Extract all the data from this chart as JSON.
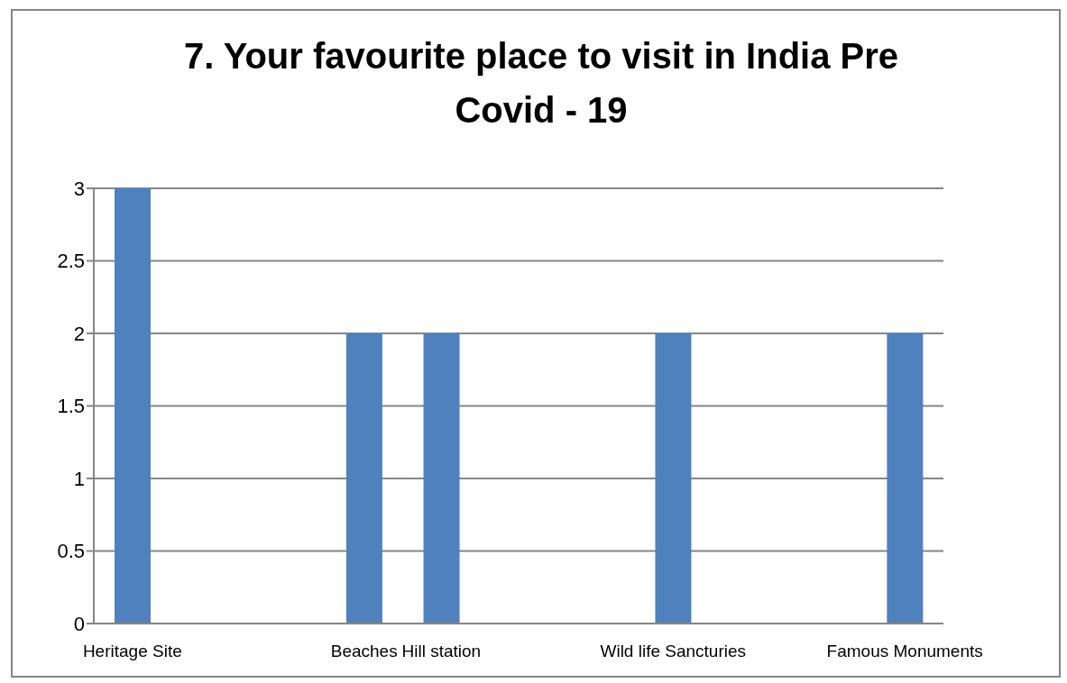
{
  "chart_data": {
    "type": "bar",
    "title": "7. Your favourite place to visit in India Pre Covid - 19",
    "categories": [
      "Heritage Site",
      null,
      null,
      "Beaches",
      "Hill station",
      null,
      null,
      "Wild life Sancturies",
      null,
      null,
      "Famous Monuments"
    ],
    "values": [
      3,
      null,
      0,
      2,
      2,
      null,
      0,
      2,
      null,
      0,
      2
    ],
    "color": "#4f81bd",
    "ylim": [
      0,
      3
    ],
    "yticks": [
      0,
      0.5,
      1,
      1.5,
      2,
      2.5,
      3
    ],
    "grid": "y"
  }
}
